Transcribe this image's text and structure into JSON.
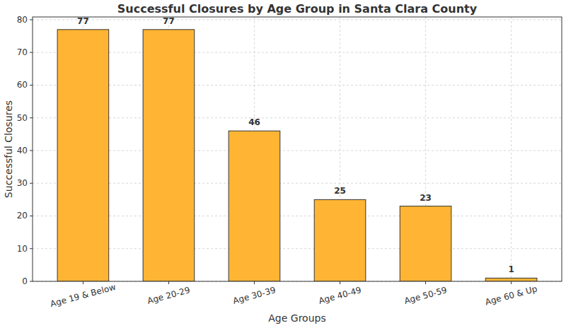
{
  "chart_data": {
    "type": "bar",
    "title": "Successful Closures by Age Group in Santa Clara County",
    "xlabel": "Age Groups",
    "ylabel": "Successful Closures",
    "categories": [
      "Age 19 & Below",
      "Age 20-29",
      "Age 30-39",
      "Age 40-49",
      "Age 50-59",
      "Age 60 & Up"
    ],
    "values": [
      77,
      77,
      46,
      25,
      23,
      1
    ],
    "color": "#ffb533",
    "ylim": [
      0,
      80.85
    ],
    "yticks": [
      0,
      10,
      20,
      30,
      40,
      50,
      60,
      70,
      80
    ],
    "grid": true,
    "data_labels": true
  }
}
